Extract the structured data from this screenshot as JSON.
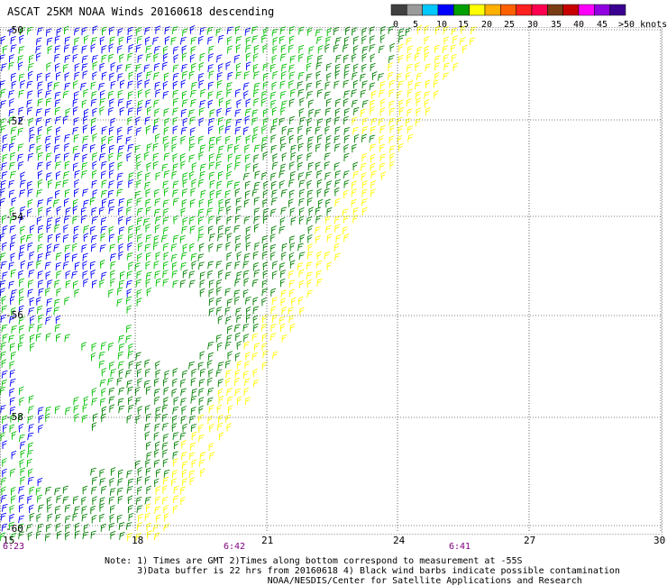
{
  "title": "ASCAT 25KM NOAA Winds 20160618 descending",
  "colorbar": {
    "colors": [
      "#404040",
      "#9a9a9a",
      "#00c8ff",
      "#0000ff",
      "#00a000",
      "#ffff00",
      "#ffb000",
      "#ff6000",
      "#ff2020",
      "#ff0050",
      "#7a3c14",
      "#c80000",
      "#ff00ff",
      "#9000e0",
      "#3a0090"
    ],
    "labels": [
      "0",
      "5",
      "10",
      "15",
      "20",
      "25",
      "30",
      "35",
      "40",
      "45",
      ">50 knots"
    ]
  },
  "map": {
    "lat_labels": [
      "-50",
      "-52",
      "-54",
      "-56",
      "-58",
      "-60"
    ],
    "lon_labels": [
      "15",
      "18",
      "21",
      "24",
      "27",
      "30"
    ],
    "time_labels": [
      "6:23",
      "6:42",
      "6:41"
    ]
  },
  "notes": [
    "Note: 1) Times are GMT 2)Times along bottom correspond to measurement at -55S",
    "      3)Data buffer is 22 hrs from 20160618 4) Black wind barbs indicate possible contamination",
    "                              NOAA/NESDIS/Center for Satellite Applications and Research"
  ],
  "wind_colors": {
    "blue": "#0000ff",
    "green": "#00c000",
    "darkgreen": "#008000",
    "yellow": "#ffff00"
  }
}
